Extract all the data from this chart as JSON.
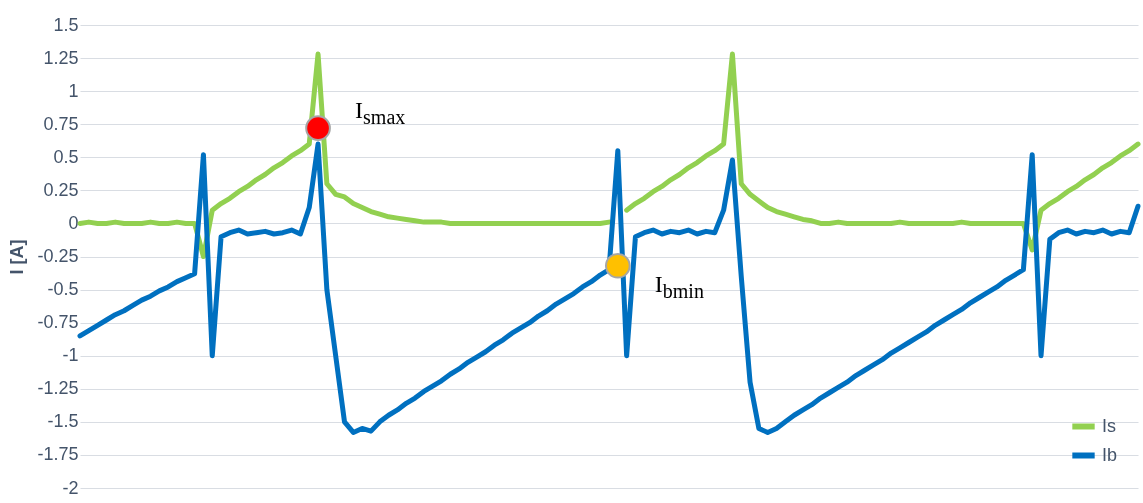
{
  "chart_data": {
    "type": "line",
    "ylabel": "I [A]",
    "ylim": [
      -2,
      1.5
    ],
    "yticks": [
      -2,
      -1.75,
      -1.5,
      -1.25,
      -1,
      -0.75,
      -0.5,
      -0.25,
      0,
      0.25,
      0.5,
      0.75,
      1,
      1.25,
      1.5
    ],
    "grid": "y",
    "legend": "bottom right",
    "tick_labels": "y",
    "categories": [
      null,
      null,
      null,
      null,
      null,
      null,
      null,
      null,
      null,
      null,
      null,
      null,
      null,
      null,
      null,
      null,
      null,
      null,
      null,
      null,
      null,
      null,
      null,
      null,
      null,
      null,
      null,
      null,
      null,
      null,
      null,
      null,
      null,
      null,
      null,
      null,
      null,
      null,
      null,
      null,
      null,
      null,
      null,
      null,
      null,
      null,
      null,
      null,
      null,
      null,
      null,
      null,
      null,
      null,
      null,
      null,
      null,
      null,
      null,
      null,
      null,
      null,
      null,
      null,
      null,
      null,
      null,
      null,
      null,
      null,
      null,
      null,
      null,
      null,
      null,
      null,
      null,
      null,
      null,
      null,
      null,
      null,
      null,
      null,
      null,
      null,
      null,
      null,
      null,
      null,
      null,
      null,
      null,
      null,
      null,
      null,
      null,
      null,
      null,
      null,
      null,
      null,
      null,
      null,
      null,
      null,
      null,
      null,
      null,
      null,
      null,
      null,
      null,
      null,
      null,
      null,
      null,
      null,
      null,
      null,
      null
    ],
    "series": [
      {
        "name": "Is",
        "color": "#92d050",
        "values": [
          0,
          0.01,
          0,
          0,
          0.01,
          0,
          0,
          0,
          0.01,
          0,
          0,
          0.01,
          0,
          0,
          -0.25,
          0.1,
          0.15,
          0.19,
          0.24,
          0.28,
          0.33,
          0.37,
          0.42,
          0.46,
          0.51,
          0.55,
          0.6,
          1.28,
          0.3,
          0.22,
          0.2,
          0.15,
          0.12,
          0.09,
          0.07,
          0.05,
          0.04,
          0.03,
          0.02,
          0.01,
          0.01,
          0.01,
          0,
          0,
          0,
          0,
          0,
          0,
          0,
          0,
          0,
          0,
          0,
          0,
          0,
          0,
          0,
          0,
          0,
          0,
          0.01,
          null,
          0.1,
          0.15,
          0.19,
          0.24,
          0.28,
          0.33,
          0.37,
          0.42,
          0.46,
          0.51,
          0.55,
          0.6,
          1.28,
          0.3,
          0.22,
          0.17,
          0.12,
          0.09,
          0.07,
          0.05,
          0.03,
          0.02,
          0,
          0,
          0.01,
          0,
          0,
          0,
          0,
          0,
          0,
          0.01,
          0,
          0,
          0,
          0,
          0,
          0,
          0.01,
          0,
          0,
          0,
          0,
          0,
          0,
          0,
          -0.2,
          0.1,
          0.15,
          0.19,
          0.24,
          0.28,
          0.33,
          0.37,
          0.42,
          0.46,
          0.51,
          0.55,
          0.6
        ]
      },
      {
        "name": "Ib",
        "color": "#0070c0",
        "values": [
          -0.85,
          -0.81,
          -0.77,
          -0.73,
          -0.69,
          -0.66,
          -0.62,
          -0.58,
          -0.55,
          -0.51,
          -0.48,
          -0.44,
          -0.41,
          -0.38,
          0.52,
          -1.0,
          -0.1,
          -0.07,
          -0.05,
          -0.08,
          -0.07,
          -0.06,
          -0.08,
          -0.07,
          -0.05,
          -0.08,
          0.12,
          0.6,
          -0.5,
          -1.0,
          -1.5,
          -1.58,
          -1.55,
          -1.57,
          -1.5,
          -1.45,
          -1.41,
          -1.36,
          -1.32,
          -1.27,
          -1.23,
          -1.19,
          -1.14,
          -1.1,
          -1.05,
          -1.01,
          -0.97,
          -0.92,
          -0.88,
          -0.83,
          -0.79,
          -0.75,
          -0.7,
          -0.66,
          -0.61,
          -0.57,
          -0.53,
          -0.48,
          -0.44,
          -0.39,
          -0.35,
          0.55,
          -1.0,
          -0.1,
          -0.07,
          -0.05,
          -0.08,
          -0.06,
          -0.07,
          -0.05,
          -0.08,
          -0.06,
          -0.07,
          0.1,
          0.48,
          -0.4,
          -1.2,
          -1.55,
          -1.58,
          -1.55,
          -1.5,
          -1.45,
          -1.41,
          -1.37,
          -1.32,
          -1.28,
          -1.24,
          -1.2,
          -1.15,
          -1.11,
          -1.07,
          -1.03,
          -0.98,
          -0.94,
          -0.9,
          -0.86,
          -0.82,
          -0.77,
          -0.73,
          -0.69,
          -0.65,
          -0.6,
          -0.56,
          -0.52,
          -0.48,
          -0.43,
          -0.39,
          -0.35,
          0.52,
          -1.0,
          -0.12,
          -0.07,
          -0.05,
          -0.08,
          -0.06,
          -0.07,
          -0.05,
          -0.08,
          -0.06,
          -0.07,
          0.13
        ]
      },
      {
        "type": "scatter",
        "color": "#ff0000",
        "values": [
          null,
          null,
          null,
          null,
          null,
          null,
          null,
          null,
          null,
          null,
          null,
          null,
          null,
          null,
          null,
          null,
          null,
          null,
          null,
          null,
          null,
          null,
          null,
          null,
          null,
          null,
          null,
          0.72,
          null,
          null,
          null,
          null,
          null,
          null,
          null,
          null,
          null,
          null,
          null,
          null,
          null,
          null,
          null,
          null,
          null,
          null,
          null,
          null,
          null,
          null,
          null,
          null,
          null,
          null,
          null,
          null,
          null,
          null,
          null,
          null,
          null,
          null,
          null,
          null,
          null,
          null,
          null,
          null,
          null,
          null,
          null,
          null,
          null,
          null,
          null,
          null,
          null,
          null,
          null,
          null,
          null,
          null,
          null,
          null,
          null,
          null,
          null,
          null,
          null,
          null,
          null,
          null,
          null,
          null,
          null,
          null,
          null,
          null,
          null,
          null,
          null,
          null,
          null,
          null,
          null,
          null,
          null,
          null,
          null,
          null,
          null,
          null,
          null,
          null,
          null,
          null,
          null,
          null,
          null,
          null,
          null
        ]
      },
      {
        "type": "scatter",
        "color": "#ffc000",
        "values": [
          null,
          null,
          null,
          null,
          null,
          null,
          null,
          null,
          null,
          null,
          null,
          null,
          null,
          null,
          null,
          null,
          null,
          null,
          null,
          null,
          null,
          null,
          null,
          null,
          null,
          null,
          null,
          null,
          null,
          null,
          null,
          null,
          null,
          null,
          null,
          null,
          null,
          null,
          null,
          null,
          null,
          null,
          null,
          null,
          null,
          null,
          null,
          null,
          null,
          null,
          null,
          null,
          null,
          null,
          null,
          null,
          null,
          null,
          null,
          null,
          null,
          -0.32,
          null,
          null,
          null,
          null,
          null,
          null,
          null,
          null,
          null,
          null,
          null,
          null,
          null,
          null,
          null,
          null,
          null,
          null,
          null,
          null,
          null,
          null,
          null,
          null,
          null,
          null,
          null,
          null,
          null,
          null,
          null,
          null,
          null,
          null,
          null,
          null,
          null,
          null,
          null,
          null,
          null,
          null,
          null,
          null,
          null,
          null,
          null,
          null,
          null,
          null,
          null,
          null,
          null,
          null,
          null,
          null,
          null,
          null,
          null
        ]
      }
    ],
    "annotations": [
      "I$_{smax}$",
      "I$_{bmin}$"
    ]
  }
}
